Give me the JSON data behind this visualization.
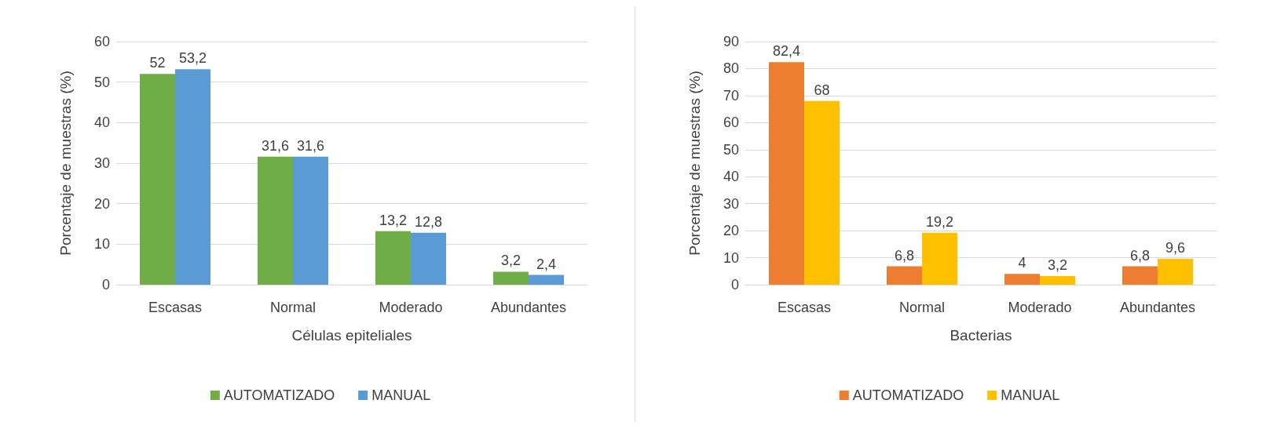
{
  "chart_data": [
    {
      "type": "bar",
      "xlabel": "Células epiteliales",
      "ylabel": "Porcentaje de muestras (%)",
      "categories": [
        "Escasas",
        "Normal",
        "Moderado",
        "Abundantes"
      ],
      "series": [
        {
          "name": "AUTOMATIZADO",
          "color": "#70ad47",
          "values": [
            52,
            31.6,
            13.2,
            3.2
          ],
          "value_labels": [
            "52",
            "31,6",
            "13,2",
            "3,2"
          ]
        },
        {
          "name": "MANUAL",
          "color": "#5b9bd5",
          "values": [
            53.2,
            31.6,
            12.8,
            2.4
          ],
          "value_labels": [
            "53,2",
            "31,6",
            "12,8",
            "2,4"
          ]
        }
      ],
      "ylim": [
        0,
        60
      ],
      "yticks": [
        0,
        10,
        20,
        30,
        40,
        50,
        60
      ],
      "grid": "y",
      "legend": "bottom"
    },
    {
      "type": "bar",
      "xlabel": "Bacterias",
      "ylabel": "Porcentaje de muestras (%)",
      "categories": [
        "Escasas",
        "Normal",
        "Moderado",
        "Abundantes"
      ],
      "series": [
        {
          "name": "AUTOMATIZADO",
          "color": "#ed7d31",
          "values": [
            82.4,
            6.8,
            4,
            6.8
          ],
          "value_labels": [
            "82,4",
            "6,8",
            "4",
            "6,8"
          ]
        },
        {
          "name": "MANUAL",
          "color": "#ffc000",
          "values": [
            68,
            19.2,
            3.2,
            9.6
          ],
          "value_labels": [
            "68",
            "19,2",
            "3,2",
            "9,6"
          ]
        }
      ],
      "ylim": [
        0,
        90
      ],
      "yticks": [
        0,
        10,
        20,
        30,
        40,
        50,
        60,
        70,
        80,
        90
      ],
      "grid": "y",
      "legend": "bottom"
    }
  ]
}
